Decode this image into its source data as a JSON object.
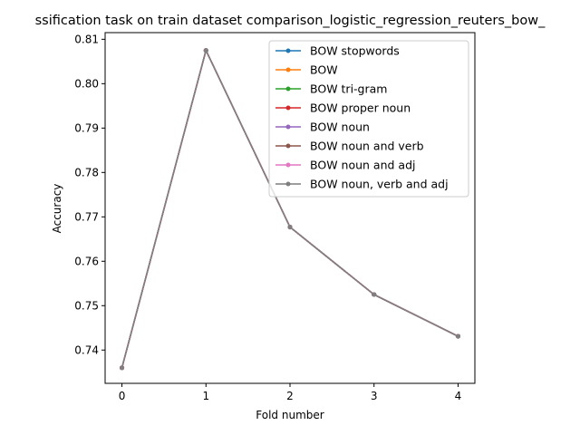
{
  "chart_data": {
    "type": "line",
    "title": "ssification task on train dataset comparison_logistic_regression_reuters_bow_",
    "xlabel": "Fold number",
    "ylabel": "Accuracy",
    "x": [
      0,
      1,
      2,
      3,
      4
    ],
    "xticks": [
      "0",
      "1",
      "2",
      "3",
      "4"
    ],
    "yticks": [
      "0.74",
      "0.75",
      "0.76",
      "0.77",
      "0.78",
      "0.79",
      "0.80",
      "0.81"
    ],
    "xlim": [
      -0.2,
      4.2
    ],
    "ylim": [
      0.7325,
      0.8115
    ],
    "grid": false,
    "legend_position": "upper-right",
    "series": [
      {
        "name": "BOW stopwords",
        "color": "#1f77b4",
        "values": [
          0.736,
          0.8075,
          0.7677,
          0.7525,
          0.7431
        ]
      },
      {
        "name": "BOW",
        "color": "#ff7f0e",
        "values": [
          0.736,
          0.8075,
          0.7677,
          0.7525,
          0.7431
        ]
      },
      {
        "name": "BOW tri-gram",
        "color": "#2ca02c",
        "values": [
          0.736,
          0.8075,
          0.7677,
          0.7525,
          0.7431
        ]
      },
      {
        "name": "BOW proper noun",
        "color": "#d62728",
        "values": [
          0.736,
          0.8075,
          0.7677,
          0.7525,
          0.7431
        ]
      },
      {
        "name": "BOW noun",
        "color": "#9467bd",
        "values": [
          0.736,
          0.8075,
          0.7677,
          0.7525,
          0.7431
        ]
      },
      {
        "name": "BOW noun and verb",
        "color": "#8c564b",
        "values": [
          0.736,
          0.8075,
          0.7677,
          0.7525,
          0.7431
        ]
      },
      {
        "name": "BOW noun and adj",
        "color": "#e377c2",
        "values": [
          0.736,
          0.8075,
          0.7677,
          0.7525,
          0.7431
        ]
      },
      {
        "name": "BOW noun, verb and adj",
        "color": "#7f7f7f",
        "values": [
          0.736,
          0.8075,
          0.7677,
          0.7525,
          0.7431
        ]
      }
    ]
  }
}
